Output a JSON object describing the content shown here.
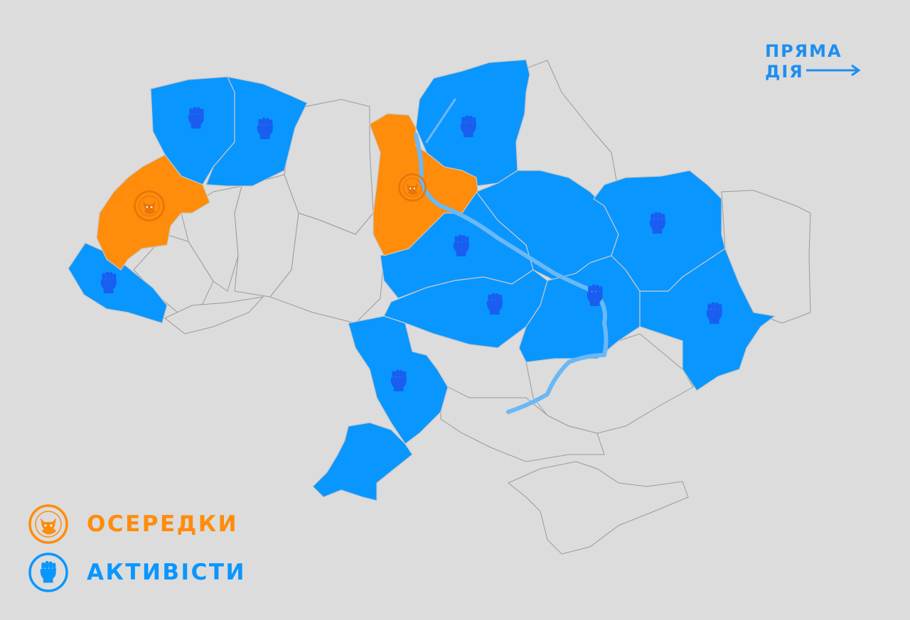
{
  "brand": {
    "line1": "ПРЯМА",
    "line2": "ДІЯ",
    "color": "#1e8ef0"
  },
  "colors": {
    "background": "#dcdcdc",
    "active_cells": "#ff8c0a",
    "activists": "#0a96ff",
    "activist_icon": "#1a5ef0",
    "river": "#6ab8f5"
  },
  "legend": [
    {
      "label": "ОСЕРЕДКИ",
      "icon": "fox-emblem-icon",
      "color": "#ff8c0a"
    },
    {
      "label": "АКТИВІСТИ",
      "icon": "raised-fist-icon",
      "color": "#0a96ff"
    }
  ],
  "regions": [
    {
      "id": "volyn",
      "status": "activists"
    },
    {
      "id": "rivne",
      "status": "activists"
    },
    {
      "id": "lviv",
      "status": "cell"
    },
    {
      "id": "zakarpattia",
      "status": "activists"
    },
    {
      "id": "kyiv",
      "status": "cell"
    },
    {
      "id": "chernihiv",
      "status": "activists"
    },
    {
      "id": "cherkasy",
      "status": "activists"
    },
    {
      "id": "kirovohrad",
      "status": "activists"
    },
    {
      "id": "dnipropetrovsk",
      "status": "activists"
    },
    {
      "id": "poltava",
      "status": "activists"
    },
    {
      "id": "kharkiv",
      "status": "activists"
    },
    {
      "id": "donetsk",
      "status": "activists"
    },
    {
      "id": "mykolaiv",
      "status": "activists"
    },
    {
      "id": "odesa",
      "status": "activists"
    },
    {
      "id": "ivano-frankivsk",
      "status": "none"
    },
    {
      "id": "ternopil",
      "status": "none"
    },
    {
      "id": "chernivtsi",
      "status": "none"
    },
    {
      "id": "khmelnytskyi",
      "status": "none"
    },
    {
      "id": "zhytomyr",
      "status": "none"
    },
    {
      "id": "vinnytsia",
      "status": "none"
    },
    {
      "id": "sumy",
      "status": "none"
    },
    {
      "id": "luhansk",
      "status": "none"
    },
    {
      "id": "zaporizhzhia",
      "status": "none"
    },
    {
      "id": "kherson",
      "status": "none"
    },
    {
      "id": "crimea",
      "status": "none"
    }
  ]
}
